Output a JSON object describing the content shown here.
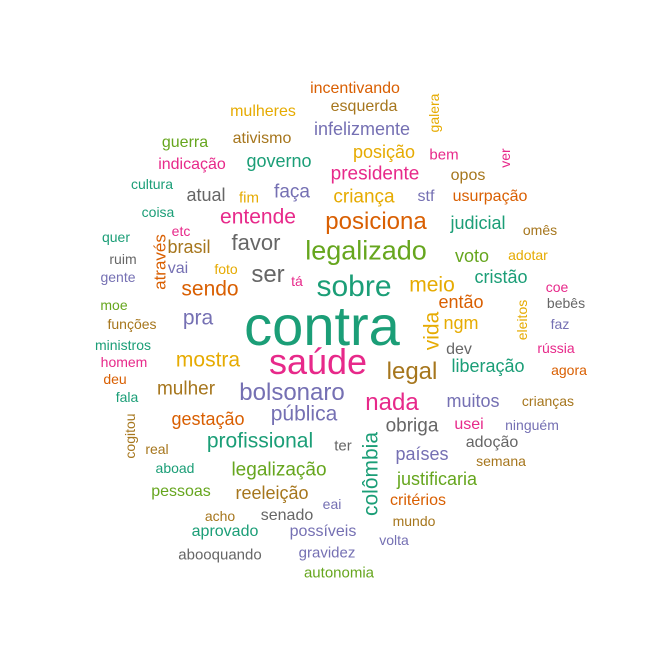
{
  "palette": {
    "teal": "#1b9e77",
    "orange": "#d95f02",
    "purple": "#7570b3",
    "pink": "#e7298a",
    "green": "#66a61e",
    "gold": "#e6ab02",
    "brown": "#a6761d",
    "gray": "#666666"
  },
  "words": [
    {
      "text": "contra",
      "color": "teal",
      "weight": 56
    },
    {
      "text": "saúde",
      "color": "pink",
      "weight": 36
    },
    {
      "text": "sobre",
      "color": "teal",
      "weight": 30
    },
    {
      "text": "legalizado",
      "color": "green",
      "weight": 27
    },
    {
      "text": "posiciona",
      "color": "orange",
      "weight": 24
    },
    {
      "text": "bolsonaro",
      "color": "purple",
      "weight": 24
    },
    {
      "text": "nada",
      "color": "pink",
      "weight": 24
    },
    {
      "text": "ser",
      "color": "gray",
      "weight": 24
    },
    {
      "text": "legal",
      "color": "brown",
      "weight": 24
    },
    {
      "text": "favor",
      "color": "gray",
      "weight": 22
    },
    {
      "text": "entende",
      "color": "pink",
      "weight": 21
    },
    {
      "text": "sendo",
      "color": "orange",
      "weight": 21
    },
    {
      "text": "mostra",
      "color": "gold",
      "weight": 21
    },
    {
      "text": "pública",
      "color": "purple",
      "weight": 21
    },
    {
      "text": "profissional",
      "color": "teal",
      "weight": 21
    },
    {
      "text": "meio",
      "color": "gold",
      "weight": 21
    },
    {
      "text": "vida",
      "color": "gold",
      "weight": 21
    },
    {
      "text": "colômbia",
      "color": "teal",
      "weight": 21
    },
    {
      "text": "pra",
      "color": "purple",
      "weight": 21
    },
    {
      "text": "mulher",
      "color": "brown",
      "weight": 19
    },
    {
      "text": "presidente",
      "color": "pink",
      "weight": 19
    },
    {
      "text": "criança",
      "color": "gold",
      "weight": 19
    },
    {
      "text": "faça",
      "color": "purple",
      "weight": 19
    },
    {
      "text": "obriga",
      "color": "gray",
      "weight": 19
    },
    {
      "text": "legalização",
      "color": "green",
      "weight": 19
    },
    {
      "text": "gestação",
      "color": "orange",
      "weight": 18
    },
    {
      "text": "países",
      "color": "purple",
      "weight": 18
    },
    {
      "text": "justificaria",
      "color": "green",
      "weight": 18
    },
    {
      "text": "posição",
      "color": "gold",
      "weight": 18
    },
    {
      "text": "governo",
      "color": "teal",
      "weight": 18
    },
    {
      "text": "brasil",
      "color": "brown",
      "weight": 18
    },
    {
      "text": "atual",
      "color": "gray",
      "weight": 18
    },
    {
      "text": "infelizmente",
      "color": "purple",
      "weight": 18
    },
    {
      "text": "judicial",
      "color": "teal",
      "weight": 18
    },
    {
      "text": "voto",
      "color": "green",
      "weight": 18
    },
    {
      "text": "cristão",
      "color": "teal",
      "weight": 18
    },
    {
      "text": "então",
      "color": "orange",
      "weight": 18
    },
    {
      "text": "ngm",
      "color": "gold",
      "weight": 18
    },
    {
      "text": "reeleição",
      "color": "brown",
      "weight": 18
    },
    {
      "text": "liberação",
      "color": "teal",
      "weight": 18
    },
    {
      "text": "muitos",
      "color": "purple",
      "weight": 18
    },
    {
      "text": "através",
      "color": "orange",
      "weight": 17
    },
    {
      "text": "incentivando",
      "color": "orange",
      "weight": 16
    },
    {
      "text": "esquerda",
      "color": "brown",
      "weight": 16
    },
    {
      "text": "mulheres",
      "color": "gold",
      "weight": 16
    },
    {
      "text": "ativismo",
      "color": "brown",
      "weight": 16
    },
    {
      "text": "guerra",
      "color": "green",
      "weight": 16
    },
    {
      "text": "indicação",
      "color": "pink",
      "weight": 16
    },
    {
      "text": "stf",
      "color": "purple",
      "weight": 16
    },
    {
      "text": "opos",
      "color": "brown",
      "weight": 16
    },
    {
      "text": "usurpação",
      "color": "orange",
      "weight": 16
    },
    {
      "text": "dev",
      "color": "gray",
      "weight": 16
    },
    {
      "text": "vai",
      "color": "purple",
      "weight": 16
    },
    {
      "text": "pessoas",
      "color": "green",
      "weight": 16
    },
    {
      "text": "critérios",
      "color": "orange",
      "weight": 16
    },
    {
      "text": "usei",
      "color": "pink",
      "weight": 16
    },
    {
      "text": "adoção",
      "color": "gray",
      "weight": 16
    },
    {
      "text": "senado",
      "color": "gray",
      "weight": 16
    },
    {
      "text": "aprovado",
      "color": "teal",
      "weight": 16
    },
    {
      "text": "possíveis",
      "color": "purple",
      "weight": 16
    },
    {
      "text": "gravidez",
      "color": "purple",
      "weight": 15
    },
    {
      "text": "abooquando",
      "color": "gray",
      "weight": 15
    },
    {
      "text": "autonomia",
      "color": "green",
      "weight": 15
    },
    {
      "text": "ter",
      "color": "gray",
      "weight": 15
    },
    {
      "text": "bem",
      "color": "pink",
      "weight": 15
    },
    {
      "text": "fim",
      "color": "gold",
      "weight": 15
    },
    {
      "text": "cultura",
      "color": "teal",
      "weight": 14
    },
    {
      "text": "coisa",
      "color": "teal",
      "weight": 14
    },
    {
      "text": "quer",
      "color": "teal",
      "weight": 14
    },
    {
      "text": "etc",
      "color": "pink",
      "weight": 14
    },
    {
      "text": "ruim",
      "color": "gray",
      "weight": 14
    },
    {
      "text": "gente",
      "color": "purple",
      "weight": 14
    },
    {
      "text": "foto",
      "color": "gold",
      "weight": 14
    },
    {
      "text": "tá",
      "color": "pink",
      "weight": 14
    },
    {
      "text": "moe",
      "color": "green",
      "weight": 14
    },
    {
      "text": "funções",
      "color": "brown",
      "weight": 14
    },
    {
      "text": "ministros",
      "color": "teal",
      "weight": 14
    },
    {
      "text": "homem",
      "color": "pink",
      "weight": 14
    },
    {
      "text": "deu",
      "color": "orange",
      "weight": 14
    },
    {
      "text": "fala",
      "color": "teal",
      "weight": 14
    },
    {
      "text": "real",
      "color": "brown",
      "weight": 14
    },
    {
      "text": "aboad",
      "color": "teal",
      "weight": 14
    },
    {
      "text": "cogitou",
      "color": "brown",
      "weight": 14
    },
    {
      "text": "acho",
      "color": "brown",
      "weight": 14
    },
    {
      "text": "eai",
      "color": "purple",
      "weight": 14
    },
    {
      "text": "mundo",
      "color": "brown",
      "weight": 14
    },
    {
      "text": "volta",
      "color": "purple",
      "weight": 14
    },
    {
      "text": "galera",
      "color": "gold",
      "weight": 14
    },
    {
      "text": "ver",
      "color": "pink",
      "weight": 14
    },
    {
      "text": "omês",
      "color": "brown",
      "weight": 14
    },
    {
      "text": "adotar",
      "color": "gold",
      "weight": 14
    },
    {
      "text": "coe",
      "color": "pink",
      "weight": 14
    },
    {
      "text": "bebês",
      "color": "gray",
      "weight": 14
    },
    {
      "text": "eleitos",
      "color": "gold",
      "weight": 14
    },
    {
      "text": "faz",
      "color": "purple",
      "weight": 14
    },
    {
      "text": "rússia",
      "color": "pink",
      "weight": 14
    },
    {
      "text": "agora",
      "color": "orange",
      "weight": 14
    },
    {
      "text": "crianças",
      "color": "brown",
      "weight": 14
    },
    {
      "text": "ninguém",
      "color": "purple",
      "weight": 14
    },
    {
      "text": "semana",
      "color": "brown",
      "weight": 14
    }
  ]
}
